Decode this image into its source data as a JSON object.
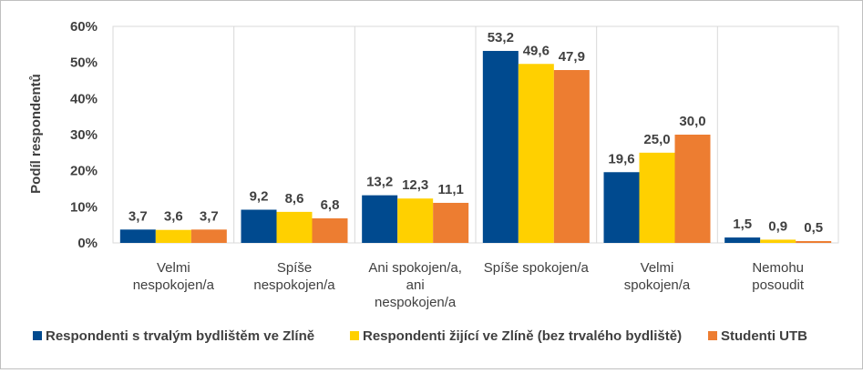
{
  "chart_data": {
    "type": "bar",
    "categories": [
      [
        "Velmi",
        "nespokojen/a"
      ],
      [
        "Spíše",
        "nespokojen/a"
      ],
      [
        "Ani spokojen/a,",
        "ani",
        "nespokojen/a"
      ],
      [
        "Spíše spokojen/a"
      ],
      [
        "Velmi",
        "spokojen/a"
      ],
      [
        "Nemohu",
        "posoudit"
      ]
    ],
    "series": [
      {
        "name": "Respondenti s trvalým bydlištěm ve Zlíně",
        "color": "#004a8f",
        "values": [
          3.7,
          9.2,
          13.2,
          53.2,
          19.6,
          1.5
        ]
      },
      {
        "name": "Respondenti žijící ve Zlíně (bez trvalého bydliště)",
        "color": "#ffd000",
        "values": [
          3.6,
          8.6,
          12.3,
          49.6,
          25.0,
          0.9
        ]
      },
      {
        "name": "Studenti UTB",
        "color": "#ed7d31",
        "values": [
          3.7,
          6.8,
          11.1,
          47.9,
          30.0,
          0.5
        ]
      }
    ],
    "ylabel": "Podíl respondentů",
    "ylim": [
      0,
      60
    ],
    "yticks": [
      "0%",
      "10%",
      "20%",
      "30%",
      "40%",
      "50%",
      "60%"
    ],
    "grid": "vertical category separators",
    "legend": "bottom"
  }
}
